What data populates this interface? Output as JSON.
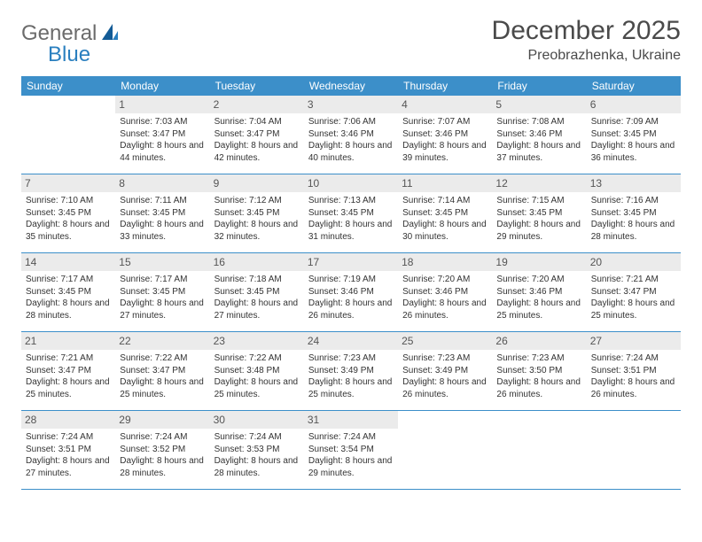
{
  "logo": {
    "text1": "General",
    "text2": "Blue"
  },
  "title": "December 2025",
  "location": "Preobrazhenka, Ukraine",
  "colors": {
    "header_bg": "#3c8fc9",
    "header_fg": "#ffffff",
    "daynum_bg": "#ebebeb",
    "daynum_fg": "#555555",
    "rule": "#3c8fc9",
    "text": "#333333",
    "logo_gray": "#6b6b6b",
    "logo_blue": "#2a7fbf"
  },
  "weekdays": [
    "Sunday",
    "Monday",
    "Tuesday",
    "Wednesday",
    "Thursday",
    "Friday",
    "Saturday"
  ],
  "weeks": [
    [
      {
        "n": "",
        "lines": []
      },
      {
        "n": "1",
        "lines": [
          "Sunrise: 7:03 AM",
          "Sunset: 3:47 PM",
          "Daylight: 8 hours and 44 minutes."
        ]
      },
      {
        "n": "2",
        "lines": [
          "Sunrise: 7:04 AM",
          "Sunset: 3:47 PM",
          "Daylight: 8 hours and 42 minutes."
        ]
      },
      {
        "n": "3",
        "lines": [
          "Sunrise: 7:06 AM",
          "Sunset: 3:46 PM",
          "Daylight: 8 hours and 40 minutes."
        ]
      },
      {
        "n": "4",
        "lines": [
          "Sunrise: 7:07 AM",
          "Sunset: 3:46 PM",
          "Daylight: 8 hours and 39 minutes."
        ]
      },
      {
        "n": "5",
        "lines": [
          "Sunrise: 7:08 AM",
          "Sunset: 3:46 PM",
          "Daylight: 8 hours and 37 minutes."
        ]
      },
      {
        "n": "6",
        "lines": [
          "Sunrise: 7:09 AM",
          "Sunset: 3:45 PM",
          "Daylight: 8 hours and 36 minutes."
        ]
      }
    ],
    [
      {
        "n": "7",
        "lines": [
          "Sunrise: 7:10 AM",
          "Sunset: 3:45 PM",
          "Daylight: 8 hours and 35 minutes."
        ]
      },
      {
        "n": "8",
        "lines": [
          "Sunrise: 7:11 AM",
          "Sunset: 3:45 PM",
          "Daylight: 8 hours and 33 minutes."
        ]
      },
      {
        "n": "9",
        "lines": [
          "Sunrise: 7:12 AM",
          "Sunset: 3:45 PM",
          "Daylight: 8 hours and 32 minutes."
        ]
      },
      {
        "n": "10",
        "lines": [
          "Sunrise: 7:13 AM",
          "Sunset: 3:45 PM",
          "Daylight: 8 hours and 31 minutes."
        ]
      },
      {
        "n": "11",
        "lines": [
          "Sunrise: 7:14 AM",
          "Sunset: 3:45 PM",
          "Daylight: 8 hours and 30 minutes."
        ]
      },
      {
        "n": "12",
        "lines": [
          "Sunrise: 7:15 AM",
          "Sunset: 3:45 PM",
          "Daylight: 8 hours and 29 minutes."
        ]
      },
      {
        "n": "13",
        "lines": [
          "Sunrise: 7:16 AM",
          "Sunset: 3:45 PM",
          "Daylight: 8 hours and 28 minutes."
        ]
      }
    ],
    [
      {
        "n": "14",
        "lines": [
          "Sunrise: 7:17 AM",
          "Sunset: 3:45 PM",
          "Daylight: 8 hours and 28 minutes."
        ]
      },
      {
        "n": "15",
        "lines": [
          "Sunrise: 7:17 AM",
          "Sunset: 3:45 PM",
          "Daylight: 8 hours and 27 minutes."
        ]
      },
      {
        "n": "16",
        "lines": [
          "Sunrise: 7:18 AM",
          "Sunset: 3:45 PM",
          "Daylight: 8 hours and 27 minutes."
        ]
      },
      {
        "n": "17",
        "lines": [
          "Sunrise: 7:19 AM",
          "Sunset: 3:46 PM",
          "Daylight: 8 hours and 26 minutes."
        ]
      },
      {
        "n": "18",
        "lines": [
          "Sunrise: 7:20 AM",
          "Sunset: 3:46 PM",
          "Daylight: 8 hours and 26 minutes."
        ]
      },
      {
        "n": "19",
        "lines": [
          "Sunrise: 7:20 AM",
          "Sunset: 3:46 PM",
          "Daylight: 8 hours and 25 minutes."
        ]
      },
      {
        "n": "20",
        "lines": [
          "Sunrise: 7:21 AM",
          "Sunset: 3:47 PM",
          "Daylight: 8 hours and 25 minutes."
        ]
      }
    ],
    [
      {
        "n": "21",
        "lines": [
          "Sunrise: 7:21 AM",
          "Sunset: 3:47 PM",
          "Daylight: 8 hours and 25 minutes."
        ]
      },
      {
        "n": "22",
        "lines": [
          "Sunrise: 7:22 AM",
          "Sunset: 3:47 PM",
          "Daylight: 8 hours and 25 minutes."
        ]
      },
      {
        "n": "23",
        "lines": [
          "Sunrise: 7:22 AM",
          "Sunset: 3:48 PM",
          "Daylight: 8 hours and 25 minutes."
        ]
      },
      {
        "n": "24",
        "lines": [
          "Sunrise: 7:23 AM",
          "Sunset: 3:49 PM",
          "Daylight: 8 hours and 25 minutes."
        ]
      },
      {
        "n": "25",
        "lines": [
          "Sunrise: 7:23 AM",
          "Sunset: 3:49 PM",
          "Daylight: 8 hours and 26 minutes."
        ]
      },
      {
        "n": "26",
        "lines": [
          "Sunrise: 7:23 AM",
          "Sunset: 3:50 PM",
          "Daylight: 8 hours and 26 minutes."
        ]
      },
      {
        "n": "27",
        "lines": [
          "Sunrise: 7:24 AM",
          "Sunset: 3:51 PM",
          "Daylight: 8 hours and 26 minutes."
        ]
      }
    ],
    [
      {
        "n": "28",
        "lines": [
          "Sunrise: 7:24 AM",
          "Sunset: 3:51 PM",
          "Daylight: 8 hours and 27 minutes."
        ]
      },
      {
        "n": "29",
        "lines": [
          "Sunrise: 7:24 AM",
          "Sunset: 3:52 PM",
          "Daylight: 8 hours and 28 minutes."
        ]
      },
      {
        "n": "30",
        "lines": [
          "Sunrise: 7:24 AM",
          "Sunset: 3:53 PM",
          "Daylight: 8 hours and 28 minutes."
        ]
      },
      {
        "n": "31",
        "lines": [
          "Sunrise: 7:24 AM",
          "Sunset: 3:54 PM",
          "Daylight: 8 hours and 29 minutes."
        ]
      },
      {
        "n": "",
        "lines": []
      },
      {
        "n": "",
        "lines": []
      },
      {
        "n": "",
        "lines": []
      }
    ]
  ]
}
